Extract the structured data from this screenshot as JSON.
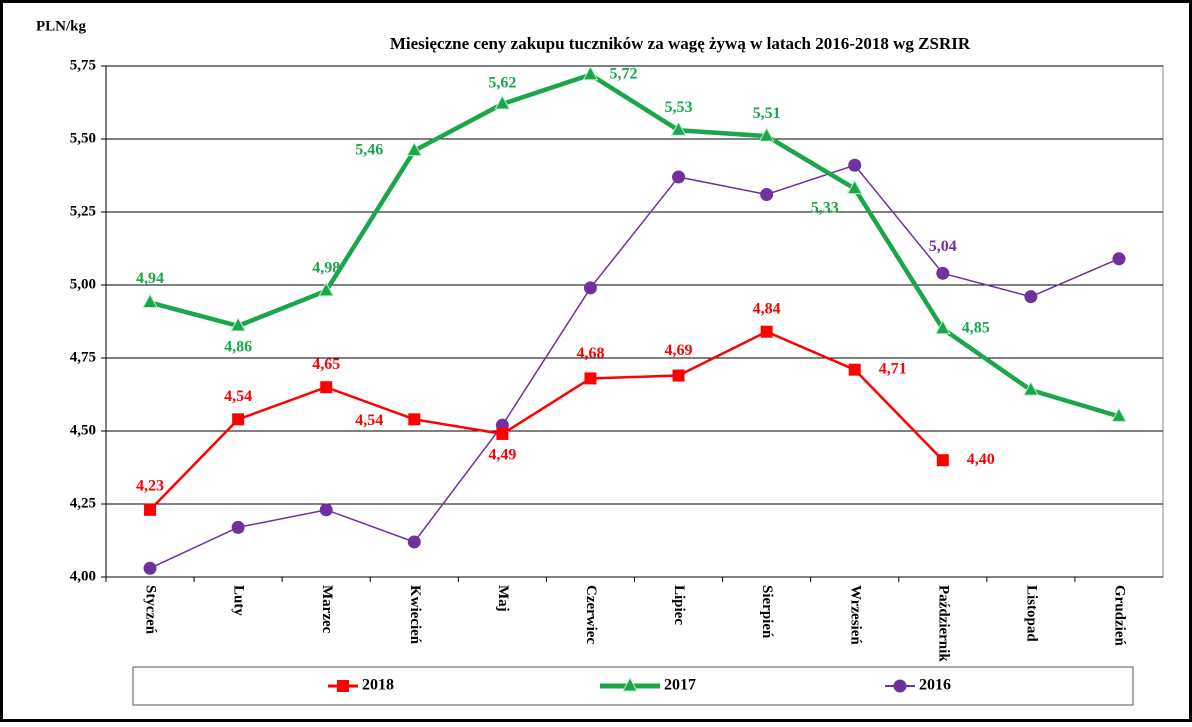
{
  "chart_data": {
    "type": "line",
    "title": "Miesięczne ceny zakupu tuczników za wagę żywą w latach 2016-2018 wg ZSRIR",
    "y_label": "PLN/kg",
    "categories": [
      "Styczeń",
      "Luty",
      "Marzec",
      "Kwiecień",
      "Maj",
      "Czerwiec",
      "Lipiec",
      "Sierpień",
      "Wrzesień",
      "Październik",
      "Listopad",
      "Grudzień"
    ],
    "ylim": [
      4.0,
      5.75
    ],
    "yticks": [
      {
        "value": 4.0,
        "label": "4,00"
      },
      {
        "value": 4.25,
        "label": "4,25"
      },
      {
        "value": 4.5,
        "label": "4,50"
      },
      {
        "value": 4.75,
        "label": "4,75"
      },
      {
        "value": 5.0,
        "label": "5,00"
      },
      {
        "value": 5.25,
        "label": "5,25"
      },
      {
        "value": 5.5,
        "label": "5,50"
      },
      {
        "value": 5.75,
        "label": "5,75"
      }
    ],
    "grid": true,
    "series": [
      {
        "name": "2018",
        "color": "#ff0000",
        "marker": "square",
        "values": [
          4.23,
          4.54,
          4.65,
          4.54,
          4.49,
          4.68,
          4.69,
          4.84,
          4.71,
          4.4,
          null,
          null
        ],
        "value_labels": [
          "4,23",
          "4,54",
          "4,65",
          "4,54",
          "4,49",
          "4,68",
          "4,69",
          "4,84",
          "4,71",
          "4,40",
          null,
          null
        ]
      },
      {
        "name": "2017",
        "color": "#1aa64a",
        "marker": "triangle",
        "values": [
          4.94,
          4.86,
          4.98,
          5.46,
          5.62,
          5.72,
          5.53,
          5.51,
          5.33,
          4.85,
          4.64,
          4.55
        ],
        "value_labels": [
          "4,94",
          "4,86",
          "4,98",
          "5,46",
          "5,62",
          "5,72",
          "5,53",
          "5,51",
          "5,33",
          "4,85",
          null,
          null
        ]
      },
      {
        "name": "2016",
        "color": "#7030a0",
        "marker": "circle",
        "values": [
          4.03,
          4.17,
          4.23,
          4.12,
          4.52,
          4.99,
          5.37,
          5.31,
          5.41,
          5.04,
          4.96,
          5.09
        ],
        "value_labels": [
          null,
          null,
          null,
          null,
          null,
          null,
          null,
          null,
          null,
          "5,04",
          null,
          null
        ]
      }
    ]
  }
}
